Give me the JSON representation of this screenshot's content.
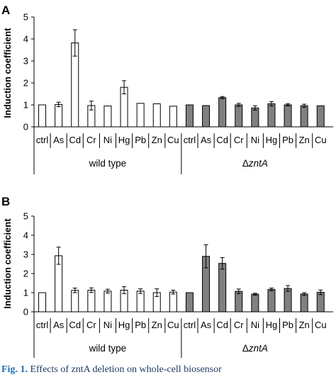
{
  "chart_data": [
    {
      "type": "bar",
      "panel": "A",
      "ylabel": "Induction coefficient",
      "ylim": [
        0,
        5
      ],
      "yticks": [
        0,
        1,
        2,
        3,
        4,
        5
      ],
      "grid": false,
      "categories": [
        "ctrl",
        "As",
        "Cd",
        "Cr",
        "Ni",
        "Hg",
        "Pb",
        "Zn",
        "Cu"
      ],
      "series": [
        {
          "name": "wild type",
          "fill": "#ffffff",
          "values": [
            1.0,
            1.02,
            3.82,
            0.97,
            0.95,
            1.8,
            1.07,
            1.05,
            0.94
          ],
          "errors": [
            0,
            0.1,
            0.6,
            0.2,
            0,
            0.3,
            0,
            0,
            0
          ]
        },
        {
          "name": "ΔzntA",
          "fill": "#808080",
          "values": [
            1.0,
            0.97,
            1.33,
            1.0,
            0.86,
            1.05,
            1.0,
            0.96,
            0.96
          ],
          "errors": [
            0,
            0,
            0.05,
            0.07,
            0.1,
            0.1,
            0.05,
            0.07,
            0
          ]
        }
      ]
    },
    {
      "type": "bar",
      "panel": "B",
      "ylabel": "Induction coefficient",
      "ylim": [
        0,
        5
      ],
      "yticks": [
        0,
        1,
        2,
        3,
        4,
        5
      ],
      "grid": false,
      "categories": [
        "ctrl",
        "As",
        "Cd",
        "Cr",
        "Ni",
        "Hg",
        "Pb",
        "Zn",
        "Cu"
      ],
      "series": [
        {
          "name": "wild type",
          "fill": "#ffffff",
          "values": [
            1.0,
            2.93,
            1.12,
            1.13,
            1.08,
            1.13,
            1.08,
            1.0,
            1.03
          ],
          "errors": [
            0,
            0.45,
            0.12,
            0.12,
            0.1,
            0.18,
            0.12,
            0.2,
            0.1
          ]
        },
        {
          "name": "ΔzntA",
          "fill": "#808080",
          "values": [
            1.0,
            2.9,
            2.53,
            1.07,
            0.92,
            1.17,
            1.22,
            0.93,
            1.02
          ],
          "errors": [
            0,
            0.6,
            0.3,
            0.12,
            0.05,
            0.07,
            0.15,
            0.07,
            0.12
          ]
        }
      ]
    }
  ],
  "group_labels": {
    "wild_type": "wild type",
    "delta_symbol": "Δ",
    "mutant_gene": "zntA"
  },
  "caption": {
    "fig_label": "Fig. 1.",
    "text": "Effects of zntA deletion on whole-cell biosensor"
  }
}
